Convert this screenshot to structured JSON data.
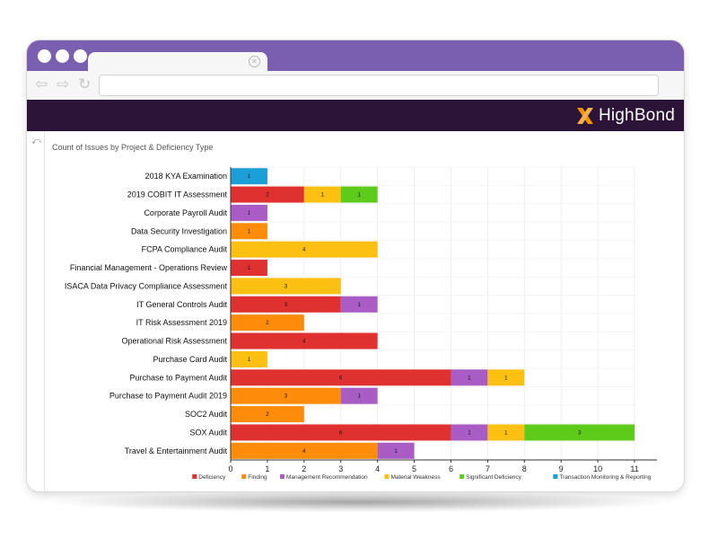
{
  "app": {
    "brand": "HighBond",
    "brand_accent": "#f39200",
    "titlebar_color": "#7a5fb0",
    "header_color": "#2c1338"
  },
  "browser": {
    "back_icon": "arrow-left-icon",
    "forward_icon": "arrow-right-icon",
    "reload_icon": "reload-icon"
  },
  "chart_data": {
    "type": "bar",
    "orientation": "horizontal",
    "stacked": true,
    "title": "Count of Issues by Project & Deficiency Type",
    "xlim": [
      0,
      11
    ],
    "x_ticks": [
      0,
      1,
      2,
      3,
      4,
      5,
      6,
      7,
      8,
      9,
      10,
      11
    ],
    "grid": true,
    "legend_position": "bottom",
    "categories": [
      "2018 KYA Examination",
      "2019 COBIT IT Assessment",
      "Corporate Payroll Audit",
      "Data Security Investigation",
      "FCPA Compliance Audit",
      "Financial Management - Operations Review",
      "ISACA Data Privacy Compliance Assessment",
      "IT General Controls Audit",
      "IT Risk Assessment 2019",
      "Operational Risk Assessment",
      "Purchase Card Audit",
      "Purchase to Payment Audit",
      "Purchase to Payment Audit 2019",
      "SOC2 Audit",
      "SOX Audit",
      "Travel & Entertainment Audit"
    ],
    "series": [
      {
        "name": "Deficiency",
        "color": "#e03131",
        "values": [
          0,
          2,
          0,
          0,
          0,
          1,
          0,
          3,
          0,
          4,
          0,
          6,
          0,
          0,
          6,
          0
        ]
      },
      {
        "name": "Finding",
        "color": "#fd8c0a",
        "values": [
          0,
          0,
          0,
          1,
          0,
          0,
          0,
          0,
          2,
          0,
          0,
          0,
          3,
          2,
          0,
          4
        ]
      },
      {
        "name": "Management Recommendation",
        "color": "#a95cc4",
        "values": [
          0,
          0,
          1,
          0,
          0,
          0,
          0,
          1,
          0,
          0,
          0,
          1,
          1,
          0,
          1,
          1
        ]
      },
      {
        "name": "Material Weakness",
        "color": "#fbc011",
        "values": [
          0,
          1,
          0,
          0,
          4,
          0,
          3,
          0,
          0,
          0,
          1,
          1,
          0,
          0,
          1,
          0
        ]
      },
      {
        "name": "Significant Deficiency",
        "color": "#5ccb1a",
        "values": [
          0,
          1,
          0,
          0,
          0,
          0,
          0,
          0,
          0,
          0,
          0,
          0,
          0,
          0,
          3,
          0
        ]
      },
      {
        "name": "Transaction Monitoring & Reporting",
        "color": "#1c9fd6",
        "values": [
          1,
          0,
          0,
          0,
          0,
          0,
          0,
          0,
          0,
          0,
          0,
          0,
          0,
          0,
          0,
          0
        ]
      }
    ]
  }
}
